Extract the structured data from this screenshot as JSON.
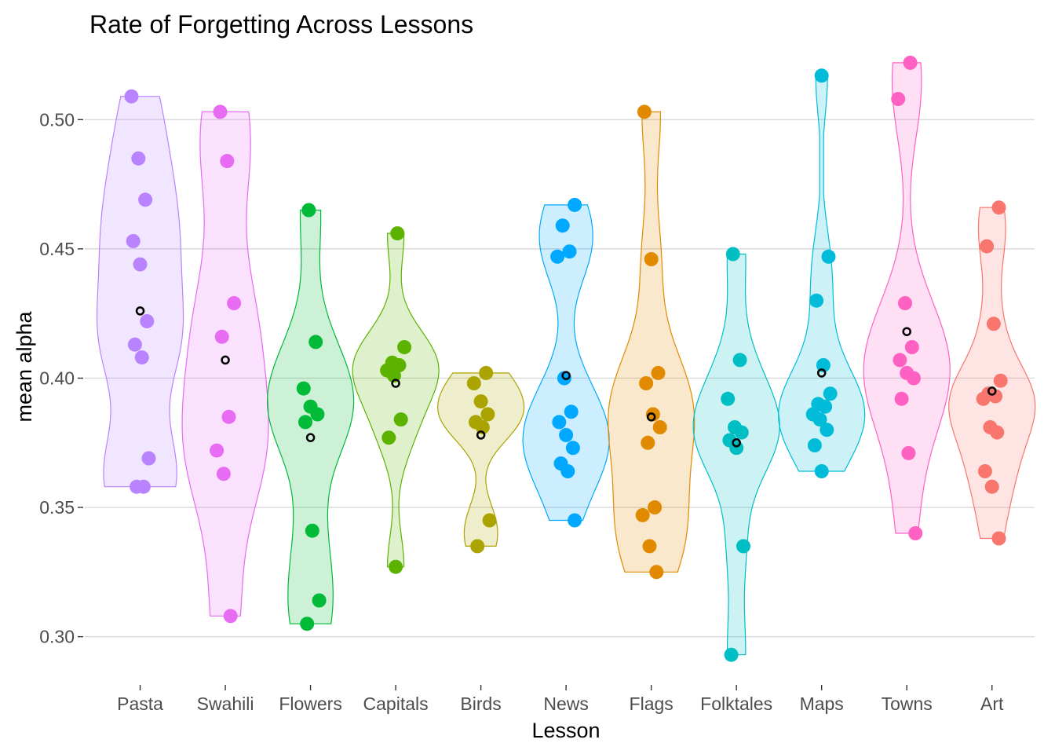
{
  "chart_data": {
    "type": "violin",
    "title": "Rate of Forgetting Across Lessons",
    "xlabel": "Lesson",
    "ylabel": "mean alpha",
    "ylim": [
      0.285,
      0.525
    ],
    "yticks": [
      "0.30",
      "0.35",
      "0.40",
      "0.45",
      "0.50"
    ],
    "grid": "horizontal",
    "legend": "none",
    "mean_marker": "open black circle",
    "categories": [
      "Pasta",
      "Swahili",
      "Flowers",
      "Capitals",
      "Birds",
      "News",
      "Flags",
      "Folktales",
      "Maps",
      "Towns",
      "Art"
    ],
    "series": [
      {
        "name": "Pasta",
        "color": "#B983FF",
        "mean": 0.426,
        "points": [
          0.509,
          0.485,
          0.469,
          0.453,
          0.444,
          0.422,
          0.413,
          0.408,
          0.369,
          0.358,
          0.358
        ]
      },
      {
        "name": "Swahili",
        "color": "#E76BF3",
        "mean": 0.407,
        "points": [
          0.503,
          0.484,
          0.429,
          0.416,
          0.385,
          0.372,
          0.363,
          0.308
        ]
      },
      {
        "name": "Flowers",
        "color": "#00BA38",
        "mean": 0.377,
        "points": [
          0.465,
          0.414,
          0.396,
          0.389,
          0.386,
          0.383,
          0.341,
          0.314,
          0.305
        ]
      },
      {
        "name": "Capitals",
        "color": "#5BB300",
        "mean": 0.398,
        "points": [
          0.456,
          0.412,
          0.406,
          0.405,
          0.403,
          0.401,
          0.384,
          0.377,
          0.327
        ]
      },
      {
        "name": "Birds",
        "color": "#ABA300",
        "mean": 0.378,
        "points": [
          0.402,
          0.398,
          0.391,
          0.386,
          0.383,
          0.381,
          0.345,
          0.335
        ]
      },
      {
        "name": "News",
        "color": "#00A9FF",
        "mean": 0.401,
        "points": [
          0.467,
          0.459,
          0.449,
          0.447,
          0.4,
          0.387,
          0.383,
          0.378,
          0.373,
          0.367,
          0.364,
          0.345
        ]
      },
      {
        "name": "Flags",
        "color": "#E18A00",
        "mean": 0.385,
        "points": [
          0.503,
          0.446,
          0.402,
          0.398,
          0.386,
          0.381,
          0.375,
          0.35,
          0.347,
          0.335,
          0.325
        ]
      },
      {
        "name": "Folktales",
        "color": "#00BFC4",
        "mean": 0.375,
        "points": [
          0.448,
          0.407,
          0.392,
          0.381,
          0.379,
          0.376,
          0.373,
          0.335,
          0.293
        ]
      },
      {
        "name": "Maps",
        "color": "#00BCD8",
        "mean": 0.402,
        "points": [
          0.517,
          0.447,
          0.43,
          0.405,
          0.394,
          0.39,
          0.389,
          0.386,
          0.384,
          0.38,
          0.374,
          0.364
        ]
      },
      {
        "name": "Towns",
        "color": "#FF61C3",
        "mean": 0.418,
        "points": [
          0.522,
          0.508,
          0.429,
          0.412,
          0.407,
          0.402,
          0.4,
          0.392,
          0.371,
          0.34
        ]
      },
      {
        "name": "Art",
        "color": "#F8766D",
        "mean": 0.395,
        "points": [
          0.466,
          0.451,
          0.421,
          0.399,
          0.394,
          0.393,
          0.392,
          0.381,
          0.379,
          0.364,
          0.358,
          0.338
        ]
      }
    ]
  }
}
